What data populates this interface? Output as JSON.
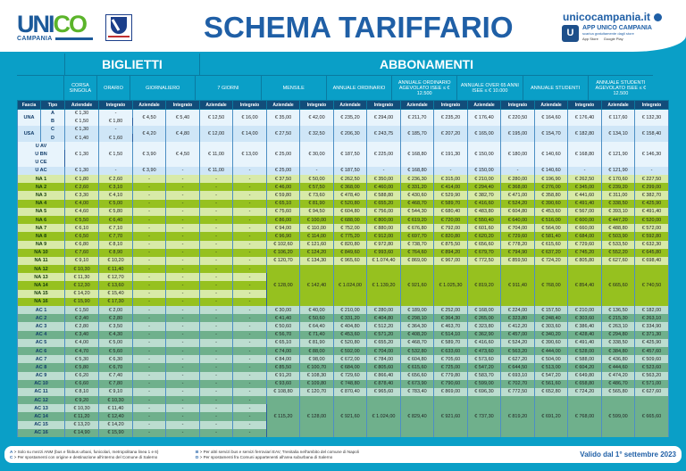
{
  "header": {
    "logo_word_a": "UNI",
    "logo_word_b": "CO",
    "logo_sub": "CAMPANIA",
    "title": "SCHEMA TARIFFARIO",
    "site": "unicocampania.it",
    "app_title": "APP UNICO CAMPANIA",
    "app_sub": "scarica gratuitamente dagli store",
    "store_apple": "App Store",
    "store_google": "Google Play",
    "app_icon": "U"
  },
  "sections": {
    "biglietti": "BIGLIETTI",
    "abbonamenti": "ABBONAMENTI"
  },
  "columns": [
    "CORSA SINGOLA",
    "ORARIO",
    "GIORNALIERO",
    "7 GIORNI",
    "MENSILE",
    "ANNUALE ORDINARIO",
    "ANNUALE ORDINARIO AGEVOLATO ISEE ≤ € 12.500",
    "ANNUALE OVER 65 ANNI ISEE ≤ € 10.000",
    "ANNUALE STUDENTI",
    "ANNUALE STUDENTI AGEVOLATO ISEE ≤ € 12.500"
  ],
  "subheaders": [
    "Fascia",
    "Tipo",
    "Aziendale",
    "Integrato",
    "Aziendale",
    "Integrato",
    "Aziendale",
    "Integrato",
    "Aziendale",
    "Integrato",
    "Aziendale",
    "Integrato",
    "Aziendale",
    "Integrato",
    "Aziendale",
    "Integrato",
    "Aziendale",
    "Integrato",
    "Aziendale",
    "Integrato"
  ],
  "urban": {
    "una": {
      "label": "UNA",
      "A": [
        "A",
        "€ 1,30",
        "-"
      ],
      "B": [
        "B",
        "€ 1,50",
        "€ 1,80"
      ],
      "rest": [
        "€ 4,50",
        "€ 5,40",
        "€ 12,50",
        "€ 16,00",
        "€ 35,00",
        "€ 42,00",
        "€ 235,20",
        "€ 294,00",
        "€ 211,70",
        "€ 235,20",
        "€ 176,40",
        "€ 220,50",
        "€ 164,60",
        "€ 176,40",
        "€ 117,60",
        "€ 132,30"
      ]
    },
    "usa": {
      "label": "USA",
      "C": [
        "C",
        "€ 1,30",
        "-"
      ],
      "D": [
        "D",
        "€ 1,40",
        "€ 1,60"
      ],
      "rest": [
        "€ 4,20",
        "€ 4,80",
        "€ 12,00",
        "€ 14,00",
        "€ 27,50",
        "€ 32,50",
        "€ 206,30",
        "€ 243,75",
        "€ 185,70",
        "€ 207,20",
        "€ 165,00",
        "€ 195,00",
        "€ 154,70",
        "€ 182,80",
        "€ 134,10",
        "€ 158,40"
      ]
    },
    "uav": {
      "labels": [
        "U AV",
        "U BN",
        "U CE"
      ],
      "vals": [
        "€ 1,30",
        "€ 1,50",
        "€ 3,90",
        "€ 4,50",
        "€ 11,00",
        "€ 13,00",
        "€ 25,00",
        "€ 30,00",
        "€ 187,50",
        "€ 225,00",
        "€ 168,80",
        "€ 191,30",
        "€ 150,00",
        "€ 180,00",
        "€ 140,60",
        "€ 168,80",
        "€ 121,90",
        "€ 146,30"
      ]
    },
    "uac": {
      "label": "U AC",
      "vals": [
        "€ 1,30",
        "-",
        "€ 3,90",
        "-",
        "€ 11,00",
        "-",
        "€ 25,00",
        "-",
        "€ 187,50",
        "-",
        "€ 168,80",
        "-",
        "€ 150,00",
        "-",
        "€ 140,60",
        "-",
        "€ 121,90",
        "-"
      ]
    }
  },
  "na_rows": [
    [
      "NA 1",
      "€ 1,80",
      "€ 2,60",
      "€ 37,50",
      "€ 50,00",
      "€ 262,50",
      "€ 350,00",
      "€ 236,30",
      "€ 315,00",
      "€ 210,00",
      "€ 280,00",
      "€ 196,90",
      "€ 262,50",
      "€ 170,60",
      "€ 227,50"
    ],
    [
      "NA 2",
      "€ 2,60",
      "€ 3,10",
      "€ 46,00",
      "€ 57,50",
      "€ 368,00",
      "€ 460,00",
      "€ 331,20",
      "€ 414,00",
      "€ 294,40",
      "€ 368,00",
      "€ 276,00",
      "€ 345,00",
      "€ 239,20",
      "€ 299,00"
    ],
    [
      "NA 3",
      "€ 3,30",
      "€ 4,10",
      "€ 59,80",
      "€ 73,60",
      "€ 478,40",
      "€ 588,80",
      "€ 430,60",
      "€ 529,90",
      "€ 382,70",
      "€ 471,00",
      "€ 358,80",
      "€ 441,60",
      "€ 311,00",
      "€ 382,70"
    ],
    [
      "NA 4",
      "€ 4,00",
      "€ 5,00",
      "€ 65,10",
      "€ 81,90",
      "€ 520,80",
      "€ 655,20",
      "€ 468,70",
      "€ 589,70",
      "€ 416,60",
      "€ 524,20",
      "€ 390,60",
      "€ 491,40",
      "€ 338,50",
      "€ 425,90"
    ],
    [
      "NA 5",
      "€ 4,60",
      "€ 5,80",
      "€ 75,60",
      "€ 94,50",
      "€ 604,80",
      "€ 756,00",
      "€ 544,30",
      "€ 680,40",
      "€ 483,80",
      "€ 604,80",
      "€ 453,60",
      "€ 567,00",
      "€ 393,10",
      "€ 491,40"
    ],
    [
      "NA 6",
      "€ 5,50",
      "€ 6,40",
      "€ 86,00",
      "€ 100,00",
      "€ 688,00",
      "€ 800,00",
      "€ 619,20",
      "€ 720,00",
      "€ 550,40",
      "€ 640,00",
      "€ 516,00",
      "€ 600,00",
      "€ 447,20",
      "€ 520,00"
    ],
    [
      "NA 7",
      "€ 6,10",
      "€ 7,10",
      "€ 94,00",
      "€ 110,00",
      "€ 752,00",
      "€ 880,00",
      "€ 676,80",
      "€ 792,00",
      "€ 601,60",
      "€ 704,00",
      "€ 564,00",
      "€ 660,00",
      "€ 488,80",
      "€ 572,00"
    ],
    [
      "NA 8",
      "€ 6,50",
      "€ 7,70",
      "€ 96,90",
      "€ 114,00",
      "€ 775,20",
      "€ 912,00",
      "€ 697,70",
      "€ 820,80",
      "€ 620,20",
      "€ 729,60",
      "€ 581,40",
      "€ 684,00",
      "€ 503,90",
      "€ 592,80"
    ],
    [
      "NA 9",
      "€ 6,80",
      "€ 8,10",
      "€ 102,60",
      "€ 121,60",
      "€ 820,80",
      "€ 972,80",
      "€ 738,70",
      "€ 875,50",
      "€ 656,60",
      "€ 778,20",
      "€ 615,60",
      "€ 729,60",
      "€ 533,50",
      "€ 632,30"
    ],
    [
      "NA 10",
      "€ 7,60",
      "€ 8,90",
      "€ 106,20",
      "€ 124,20",
      "€ 849,60",
      "€ 993,60",
      "€ 764,60",
      "€ 894,20",
      "€ 679,70",
      "€ 794,90",
      "€ 637,20",
      "€ 745,20",
      "€ 552,20",
      "€ 645,80"
    ],
    [
      "NA 11",
      "€ 9,10",
      "€ 10,20",
      "€ 120,70",
      "€ 134,30",
      "€ 965,60",
      "€ 1.074,40",
      "€ 869,00",
      "€ 967,00",
      "€ 772,50",
      "€ 859,50",
      "€ 724,20",
      "€ 805,80",
      "€ 627,60",
      "€ 698,40"
    ]
  ],
  "na_tail": [
    [
      "NA 12",
      "€ 10,30",
      "€ 11,40"
    ],
    [
      "NA 13",
      "€ 11,30",
      "€ 12,70"
    ],
    [
      "NA 14",
      "€ 12,30",
      "€ 13,60"
    ],
    [
      "NA 15",
      "€ 14,20",
      "€ 15,40"
    ],
    [
      "NA 16",
      "€ 15,90",
      "€ 17,30"
    ]
  ],
  "na_merged": [
    "€ 128,00",
    "€ 142,40",
    "€ 1.024,00",
    "€ 1.139,20",
    "€ 921,60",
    "€ 1.025,30",
    "€ 819,20",
    "€ 911,40",
    "€ 768,00",
    "€ 854,40",
    "€ 665,60",
    "€ 740,50"
  ],
  "ac_rows": [
    [
      "AC 1",
      "€ 1,50",
      "€ 2,00",
      "€ 30,00",
      "€ 40,00",
      "€ 210,00",
      "€ 280,00",
      "€ 189,00",
      "€ 252,00",
      "€ 168,00",
      "€ 224,00",
      "€ 157,50",
      "€ 210,00",
      "€ 136,50",
      "€ 182,00"
    ],
    [
      "AC 2",
      "€ 2,40",
      "€ 2,80",
      "€ 41,40",
      "€ 50,60",
      "€ 331,20",
      "€ 404,80",
      "€ 298,10",
      "€ 364,30",
      "€ 265,00",
      "€ 323,80",
      "€ 248,40",
      "€ 303,60",
      "€ 215,30",
      "€ 263,10"
    ],
    [
      "AC 3",
      "€ 2,80",
      "€ 3,50",
      "€ 50,60",
      "€ 64,40",
      "€ 404,80",
      "€ 512,20",
      "€ 364,30",
      "€ 463,70",
      "€ 323,80",
      "€ 412,20",
      "€ 303,60",
      "€ 386,40",
      "€ 263,10",
      "€ 334,90"
    ],
    [
      "AC 4",
      "€ 3,40",
      "€ 4,30",
      "€ 56,70",
      "€ 71,40",
      "€ 453,60",
      "€ 571,20",
      "€ 408,20",
      "€ 514,10",
      "€ 362,90",
      "€ 457,00",
      "€ 340,20",
      "€ 428,40",
      "€ 294,80",
      "€ 371,30"
    ],
    [
      "AC 5",
      "€ 4,00",
      "€ 5,00",
      "€ 65,10",
      "€ 81,90",
      "€ 520,80",
      "€ 655,20",
      "€ 468,70",
      "€ 589,70",
      "€ 416,60",
      "€ 524,20",
      "€ 390,60",
      "€ 491,40",
      "€ 338,50",
      "€ 425,90"
    ],
    [
      "AC 6",
      "€ 4,70",
      "€ 5,60",
      "€ 74,00",
      "€ 88,00",
      "€ 592,00",
      "€ 704,00",
      "€ 532,80",
      "€ 633,60",
      "€ 473,60",
      "€ 563,20",
      "€ 444,00",
      "€ 528,00",
      "€ 384,80",
      "€ 457,60"
    ],
    [
      "AC 7",
      "€ 5,30",
      "€ 6,30",
      "€ 84,00",
      "€ 98,00",
      "€ 672,00",
      "€ 784,00",
      "€ 604,80",
      "€ 705,60",
      "€ 573,60",
      "€ 627,20",
      "€ 504,00",
      "€ 588,00",
      "€ 436,80",
      "€ 509,60"
    ],
    [
      "AC 8",
      "€ 5,80",
      "€ 6,70",
      "€ 85,50",
      "€ 100,70",
      "€ 684,00",
      "€ 805,60",
      "€ 615,60",
      "€ 725,00",
      "€ 547,20",
      "€ 644,50",
      "€ 513,00",
      "€ 604,20",
      "€ 444,60",
      "€ 523,60"
    ],
    [
      "AC 9",
      "€ 6,20",
      "€ 7,40",
      "€ 91,20",
      "€ 108,30",
      "€ 729,60",
      "€ 866,40",
      "€ 656,60",
      "€ 779,80",
      "€ 583,70",
      "€ 693,10",
      "€ 547,20",
      "€ 649,80",
      "€ 474,20",
      "€ 563,20"
    ],
    [
      "AC 10",
      "€ 6,60",
      "€ 7,80",
      "€ 93,60",
      "€ 109,80",
      "€ 748,80",
      "€ 878,40",
      "€ 673,90",
      "€ 790,60",
      "€ 599,00",
      "€ 702,70",
      "€ 561,60",
      "€ 658,80",
      "€ 486,70",
      "€ 571,00"
    ],
    [
      "AC 11",
      "€ 8,10",
      "€ 9,10",
      "€ 108,80",
      "€ 120,70",
      "€ 870,40",
      "€ 965,60",
      "€ 783,40",
      "€ 869,00",
      "€ 696,30",
      "€ 772,50",
      "€ 652,80",
      "€ 724,20",
      "€ 565,80",
      "€ 627,60"
    ]
  ],
  "ac_tail": [
    [
      "AC 12",
      "€ 9,20",
      "€ 10,30"
    ],
    [
      "AC 13",
      "€ 10,30",
      "€ 11,40"
    ],
    [
      "AC 14",
      "€ 11,20",
      "€ 12,40"
    ],
    [
      "AC 15",
      "€ 13,20",
      "€ 14,20"
    ],
    [
      "AC 16",
      "€ 14,90",
      "€ 15,90"
    ]
  ],
  "ac_merged": [
    "€ 115,20",
    "€ 128,00",
    "€ 921,60",
    "€ 1.024,00",
    "€ 829,40",
    "€ 921,60",
    "€ 737,30",
    "€ 819,20",
    "€ 691,20",
    "€ 768,00",
    "€ 599,00",
    "€ 665,60"
  ],
  "dash": "-",
  "footer": {
    "note_a_key": "A",
    "note_a": " > Solo su mezzi ANM (bus e filobus urbani, funicolari, metropolitana linea 1 e 6)",
    "note_b_key": "B",
    "note_b": " > Per altri servizi bus e servizi ferroviari EAV, Trenitalia nell'ambito del comune di Napoli",
    "note_c_key": "C",
    "note_c": " > Per spostamenti con origine e destinazione all'interno del Comune di Salerno",
    "note_d_key": "D",
    "note_d": " > Per spostamenti fra Comuni appartenenti all'area suburbana di Salerno",
    "valid": "Valido dal 1° settembre 2023"
  }
}
